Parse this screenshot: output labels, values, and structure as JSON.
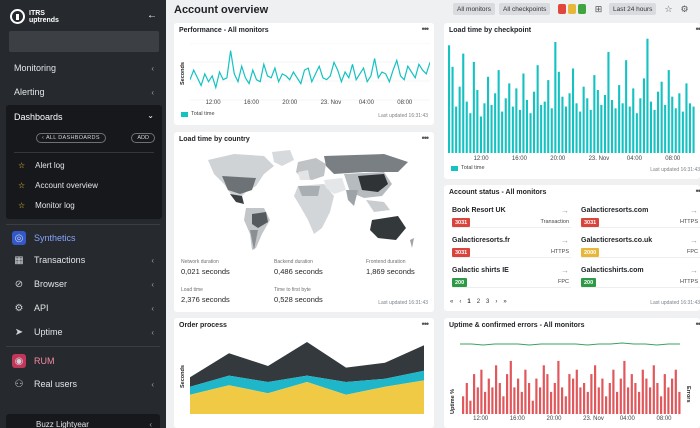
{
  "app": {
    "logo_line1": "ITRS",
    "logo_line2": "uptrends",
    "page_title": "Account overview"
  },
  "sidebar": {
    "monitoring": "Monitoring",
    "alerting": "Alerting",
    "dashboards": {
      "title": "Dashboards",
      "all_dashboards_label": "ALL DASHBOARDS",
      "add_label": "ADD",
      "links": [
        "Alert log",
        "Account overview",
        "Monitor log"
      ]
    },
    "synthetics": "Synthetics",
    "transactions": "Transactions",
    "browser": "Browser",
    "api": "API",
    "uptime": "Uptime",
    "rum": "RUM",
    "real_users": "Real users",
    "user_name": "Buzz Lightyear"
  },
  "header": {
    "all_monitors": "All monitors",
    "all_checkpoints": "All checkpoints",
    "time_range": "Last 24 hours",
    "status_colors": [
      "#e0463c",
      "#e8b73a",
      "#3fa63f"
    ]
  },
  "colors": {
    "teal": "#14c2c2",
    "red_bar": "#e0575c",
    "green_line": "#3aa35c",
    "badge_red": "#d9443d",
    "badge_yellow": "#e8b73a",
    "badge_green": "#2e9a47"
  },
  "performance": {
    "title": "Performance - All monitors",
    "ylabel": "Seconds",
    "xticks": [
      "12:00",
      "16:00",
      "20:00",
      "23. Nov",
      "04:00",
      "08:00"
    ],
    "legend": "Total time",
    "updated": "Last updated 16:31:43",
    "values": [
      1.1,
      1.6,
      1.2,
      0.8,
      1.4,
      1.0,
      1.3,
      0.7,
      1.5,
      1.1,
      1.2,
      2.6,
      1.4,
      1.0,
      1.8,
      1.2,
      0.9,
      1.6,
      1.1,
      1.0,
      1.9,
      1.3,
      1.2,
      1.7,
      1.0,
      1.4,
      1.3,
      1.1,
      1.5,
      1.2,
      0.9,
      1.6,
      1.7,
      1.0,
      1.4,
      1.8,
      1.2,
      1.1,
      1.3,
      2.0,
      1.6,
      1.0,
      1.5,
      1.2,
      1.9,
      1.1,
      1.4,
      1.7,
      1.0,
      1.3,
      2.2,
      1.2,
      1.5,
      1.4,
      1.0,
      1.6,
      2.1,
      1.3,
      1.1,
      1.8,
      1.5,
      1.2,
      1.9,
      1.6,
      1.4,
      2.0
    ]
  },
  "checkpoint": {
    "title": "Load time by checkpoint",
    "xticks": [
      "12:00",
      "16:00",
      "20:00",
      "23. Nov",
      "04:00",
      "08:00"
    ],
    "legend": "Total time",
    "updated": "Last updated 16:31:43",
    "values": [
      6.5,
      5.2,
      2.8,
      4.0,
      6.0,
      3.1,
      2.4,
      5.5,
      3.8,
      2.2,
      3.0,
      4.6,
      2.9,
      3.6,
      5.0,
      2.5,
      3.3,
      4.2,
      2.8,
      3.9,
      2.6,
      4.8,
      3.2,
      2.4,
      3.7,
      5.3,
      2.9,
      3.1,
      4.4,
      2.7,
      6.7,
      4.9,
      3.4,
      2.8,
      3.6,
      5.1,
      3.0,
      2.5,
      4.0,
      3.3,
      2.6,
      4.7,
      3.8,
      2.9,
      3.5,
      6.1,
      3.2,
      2.7,
      4.1,
      3.0,
      5.6,
      2.8,
      3.9,
      2.4,
      3.3,
      4.5,
      6.9,
      3.1,
      2.6,
      3.7,
      4.3,
      2.9,
      5.0,
      3.4,
      2.7,
      3.6,
      2.5,
      4.2,
      3.0,
      2.8
    ]
  },
  "country": {
    "title": "Load time by country",
    "stats": [
      {
        "label": "Network duration",
        "value": "0,021 seconds"
      },
      {
        "label": "Backend duration",
        "value": "0,486 seconds"
      },
      {
        "label": "Frontend duration",
        "value": "1,869 seconds"
      },
      {
        "label": "Load time",
        "value": "2,376 seconds"
      },
      {
        "label": "Time to first byte",
        "value": "0,528 seconds"
      }
    ],
    "updated": "Last updated 16:31:43"
  },
  "account_status": {
    "title": "Account status - All monitors",
    "items": [
      {
        "name": "Book Resort UK",
        "count": "3031",
        "color": "#d9443d",
        "type": "Transaction"
      },
      {
        "name": "Galacticresorts.com",
        "count": "3031",
        "color": "#d9443d",
        "type": "HTTPS"
      },
      {
        "name": "Galacticresorts.fr",
        "count": "3031",
        "color": "#d9443d",
        "type": "HTTPS"
      },
      {
        "name": "Galacticresorts.co.uk",
        "count": "2000",
        "color": "#e8b73a",
        "type": "FPC"
      },
      {
        "name": "Galactic shirts IE",
        "count": "200",
        "color": "#2e9a47",
        "type": "FPC"
      },
      {
        "name": "Galacticshirts.com",
        "count": "200",
        "color": "#2e9a47",
        "type": "HTTPS"
      }
    ],
    "pages": [
      "1",
      "2",
      "3"
    ],
    "updated": "Last updated 16:31:43"
  },
  "order_process": {
    "title": "Order process",
    "ylabel": "Seconds",
    "layers": [
      {
        "color": "#f0ca45",
        "values": [
          1.2,
          1.8,
          1.3,
          2.0,
          1.2,
          1.7,
          2.1
        ]
      },
      {
        "color": "#1fb6c9",
        "values": [
          0.5,
          0.6,
          0.7,
          0.4,
          0.8,
          0.5,
          0.6
        ]
      },
      {
        "color": "#33393c",
        "values": [
          0.6,
          1.4,
          1.0,
          2.1,
          0.9,
          1.0,
          1.6
        ]
      }
    ]
  },
  "uptime_errors": {
    "title": "Uptime & confirmed errors - All monitors",
    "ylabel_left": "Uptime %",
    "ylabel_right": "Errors",
    "xticks": [
      "12:00",
      "16:00",
      "20:00",
      "23. Nov",
      "04:00",
      "08:00"
    ],
    "uptime_values": [
      99.8,
      99.8,
      99.7,
      99.8,
      99.8,
      99.8,
      99.7,
      99.8,
      99.8,
      99.8,
      99.8,
      99.7,
      99.8,
      99.8,
      99.9,
      99.8,
      99.8,
      99.7,
      99.8,
      99.8
    ],
    "errors": [
      4,
      7,
      3,
      9,
      6,
      10,
      5,
      8,
      6,
      11,
      7,
      4,
      9,
      12,
      6,
      8,
      5,
      10,
      7,
      3,
      8,
      6,
      11,
      9,
      5,
      7,
      12,
      6,
      4,
      9,
      8,
      10,
      6,
      7,
      5,
      9,
      11,
      6,
      8,
      4,
      7,
      10,
      5,
      8,
      12,
      6,
      9,
      7,
      5,
      10,
      8,
      6,
      11,
      7,
      4,
      9,
      6,
      8,
      10,
      5
    ]
  }
}
